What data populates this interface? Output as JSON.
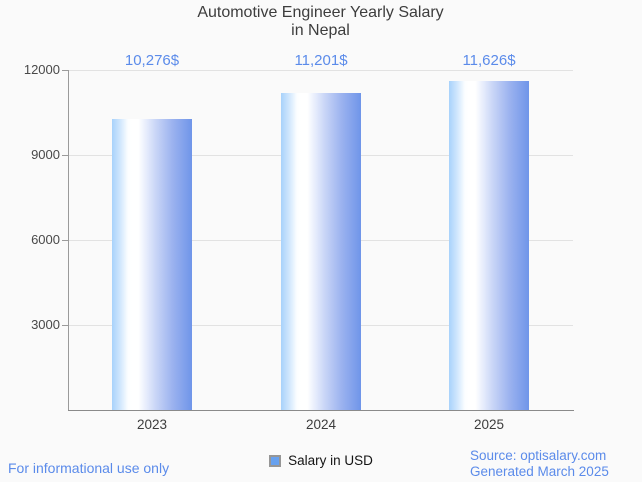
{
  "title": {
    "line1": "Automotive Engineer Yearly Salary",
    "line2": "in Nepal"
  },
  "legend": {
    "label": "Salary in USD"
  },
  "footer": {
    "disclaimer": "For informational use only",
    "source_line1": "Source: optisalary.com",
    "source_line2": "Generated March 2025"
  },
  "colors": {
    "background": "#fafafa",
    "accent_blue": "#5b8bea",
    "bar_gradient_left": "#a8d2fb",
    "bar_gradient_center": "#ffffff",
    "bar_gradient_right": "#6f95e9",
    "legend_swatch_fill": "#67a1ef",
    "gridline": "#e2e2e2",
    "axis": "#8a8a8a",
    "title_text": "#3d3d3d"
  },
  "chart_data": {
    "type": "bar",
    "title": "Automotive Engineer Yearly Salary in Nepal",
    "categories": [
      "2023",
      "2024",
      "2025"
    ],
    "values": [
      10276,
      11201,
      11626
    ],
    "value_labels": [
      "10,276$",
      "11,201$",
      "11,626$"
    ],
    "series_name": "Salary in USD",
    "xlabel": "",
    "ylabel": "",
    "ylim": [
      0,
      12000
    ],
    "yticks": [
      3000,
      6000,
      9000,
      12000
    ],
    "ytick_labels": [
      "3000",
      "6000",
      "9000",
      "12000"
    ],
    "grid": true,
    "legend_position": "bottom"
  }
}
